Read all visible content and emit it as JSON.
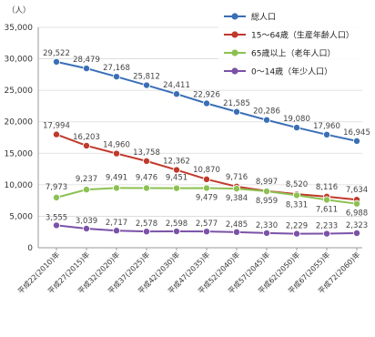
{
  "chart_data": {
    "type": "line",
    "unit": "（人）",
    "categories": [
      "平成22(2010)年",
      "平成27(2015)年",
      "平成32(2020)年",
      "平成37(2025)年",
      "平成42(2030)年",
      "平成47(2035)年",
      "平成52(2040)年",
      "平成57(2045)年",
      "平成62(2050)年",
      "平成67(2055)年",
      "平成72(2060)年"
    ],
    "ylim": [
      0,
      35000
    ],
    "yticks": [
      "0",
      "5,000",
      "10,000",
      "15,000",
      "20,000",
      "25,000",
      "30,000",
      "35,000"
    ],
    "ytick_values": [
      0,
      5000,
      10000,
      15000,
      20000,
      25000,
      30000,
      35000
    ],
    "grid": true,
    "legend_position": "top-right",
    "series": [
      {
        "name": "総人口",
        "color": "#3a6fb5",
        "values": [
          29522,
          28479,
          27168,
          25812,
          24411,
          22926,
          21585,
          20286,
          19080,
          17960,
          16945
        ],
        "labels": [
          "29,522",
          "28,479",
          "27,168",
          "25,812",
          "24,411",
          "22,926",
          "21,585",
          "20,286",
          "19,080",
          "17,960",
          "16,945"
        ]
      },
      {
        "name": "15～64歳（生産年齢人口）",
        "color": "#c0392b",
        "values": [
          17994,
          16203,
          14960,
          13758,
          12362,
          10870,
          9716,
          8997,
          8520,
          8116,
          7634
        ],
        "labels": [
          "17,994",
          "16,203",
          "14,960",
          "13,758",
          "12,362",
          "10,870",
          "9,716",
          "8,997",
          "8,520",
          "8,116",
          "7,634"
        ]
      },
      {
        "name": "65歳以上（老年人口）",
        "color": "#8cc152",
        "values": [
          7973,
          9237,
          9491,
          9476,
          9451,
          9479,
          9384,
          8959,
          8331,
          7611,
          6988
        ],
        "labels": [
          "7,973",
          "9,237",
          "9,491",
          "9,476",
          "9,451",
          "9,479",
          "9,384",
          "8,959",
          "8,331",
          "7,611",
          "6,988"
        ]
      },
      {
        "name": "0～14歳（年少人口）",
        "color": "#7b52a8",
        "values": [
          3555,
          3039,
          2717,
          2578,
          2598,
          2577,
          2485,
          2330,
          2229,
          2233,
          2323
        ],
        "labels": [
          "3,555",
          "3,039",
          "2,717",
          "2,578",
          "2,598",
          "2,577",
          "2,485",
          "2,330",
          "2,229",
          "2,233",
          "2,323"
        ]
      }
    ]
  }
}
